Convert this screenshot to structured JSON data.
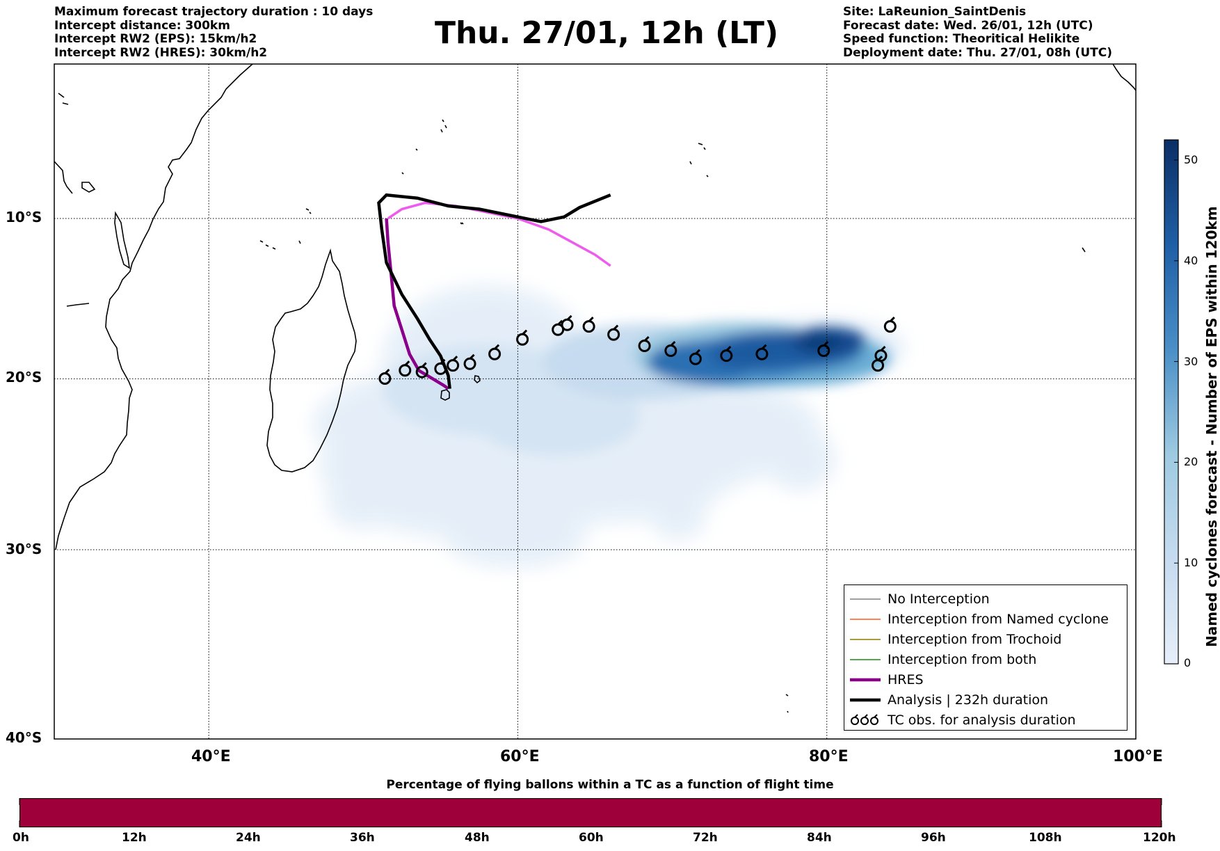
{
  "header_left": [
    "Maximum forecast trajectory duration : 10 days",
    "Intercept distance: 300km",
    "Intercept RW2 (EPS):  15km/h2",
    "Intercept RW2 (HRES): 30km/h2"
  ],
  "header_right": [
    "Site: LaReunion_SaintDenis",
    "Forecast date: Wed. 26/01, 12h (UTC)",
    "Speed function: Theoritical Helikite",
    "Deployment date: Thu. 27/01, 08h (UTC)"
  ],
  "title": "Thu. 27/01, 12h (LT)",
  "map": {
    "lon_labels": [
      "40°E",
      "60°E",
      "80°E",
      "100°E"
    ],
    "lat_labels": [
      "10°S",
      "20°S",
      "30°S",
      "40°S"
    ],
    "lon_grid": [
      40,
      60,
      80
    ],
    "lat_grid": [
      10,
      20,
      30
    ]
  },
  "legend": {
    "items": [
      {
        "label": "No Interception",
        "color": "#808080"
      },
      {
        "label": "Interception from Named cyclone",
        "color": "#ff5a1f"
      },
      {
        "label": "Interception from Trochoid",
        "color": "#8a7a00"
      },
      {
        "label": "Interception from both",
        "color": "#1a8a1a"
      },
      {
        "label": "HRES",
        "color": "#8b008b"
      },
      {
        "label": "Analysis | 232h duration",
        "color": "#000000"
      },
      {
        "label": "TC obs. for analysis duration",
        "icon": "cyclone-symbol-icon"
      }
    ]
  },
  "colorbar": {
    "title": "Named cyclones forecast - Number of EPS within 120km",
    "ticks": [
      "0",
      "10",
      "20",
      "30",
      "40",
      "50"
    ],
    "colors": [
      "#e6eff9",
      "#0b2f66"
    ]
  },
  "time_bar": {
    "title": "Percentage of flying ballons within a TC as a function of flight time",
    "ticks": [
      "0h",
      "12h",
      "24h",
      "36h",
      "48h",
      "60h",
      "72h",
      "84h",
      "96h",
      "108h",
      "120h"
    ],
    "color": "#9e003a"
  },
  "tracks": {
    "analysis": [
      [
        66,
        8.5
      ],
      [
        64,
        9.3
      ],
      [
        63,
        9.9
      ],
      [
        61.5,
        10.2
      ],
      [
        59.5,
        9.8
      ],
      [
        57.5,
        9.4
      ],
      [
        55.5,
        9.2
      ],
      [
        53.5,
        8.7
      ],
      [
        52.5,
        8.6
      ],
      [
        51.5,
        8.5
      ],
      [
        51,
        9
      ],
      [
        51.2,
        10.7
      ],
      [
        51.5,
        12.8
      ],
      [
        52.5,
        14.8
      ],
      [
        53.5,
        16.3
      ],
      [
        54.3,
        17.6
      ],
      [
        55,
        18.6
      ],
      [
        55.5,
        19.8
      ],
      [
        55.6,
        20.6
      ]
    ],
    "hres": [
      [
        51.5,
        10
      ],
      [
        51.6,
        11.5
      ],
      [
        51.8,
        13.5
      ],
      [
        52,
        15.5
      ],
      [
        52.5,
        17
      ],
      [
        53,
        18.5
      ],
      [
        53.6,
        19.5
      ],
      [
        54.5,
        20
      ],
      [
        55.2,
        20.4
      ],
      [
        55.5,
        20.6
      ]
    ],
    "magenta_fc": [
      [
        51.6,
        10
      ],
      [
        52.5,
        9.4
      ],
      [
        54,
        9
      ],
      [
        56,
        9.2
      ],
      [
        58,
        9.6
      ],
      [
        60,
        10
      ],
      [
        62,
        10.7
      ],
      [
        63.5,
        11.5
      ],
      [
        65,
        12.3
      ],
      [
        66,
        13
      ]
    ],
    "tc_obs": [
      [
        51.4,
        19.9
      ],
      [
        52.7,
        19.4
      ],
      [
        53.8,
        19.5
      ],
      [
        55,
        19.3
      ],
      [
        55.8,
        19.1
      ],
      [
        56.9,
        19
      ],
      [
        58.5,
        18.4
      ],
      [
        60.3,
        17.5
      ],
      [
        62.6,
        16.9
      ],
      [
        63.2,
        16.6
      ],
      [
        64.6,
        16.7
      ],
      [
        66.2,
        17.2
      ],
      [
        68.2,
        17.9
      ],
      [
        69.9,
        18.2
      ],
      [
        71.5,
        18.7
      ],
      [
        73.5,
        18.5
      ],
      [
        75.8,
        18.4
      ],
      [
        79.8,
        18.2
      ],
      [
        83.3,
        19.1
      ],
      [
        83.5,
        18.5
      ],
      [
        84.1,
        16.7
      ]
    ]
  }
}
